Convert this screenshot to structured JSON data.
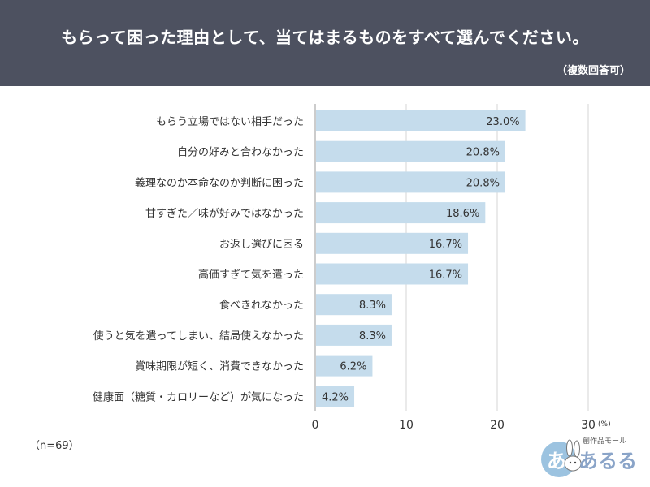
{
  "header": {
    "title": "もらって困った理由として、当てはまるものをすべて選んでください。",
    "subtitle": "（複数回答可）",
    "background_color": "#4d5160"
  },
  "footer": {
    "sample_size": "（n=69）",
    "brand_small": "創作品モール",
    "brand_main": "あるる"
  },
  "chart_data": {
    "type": "bar",
    "orientation": "horizontal",
    "categories": [
      "もらう立場ではない相手だった",
      "自分の好みと合わなかった",
      "義理なのか本命なのか判断に困った",
      "甘すぎた／味が好みではなかった",
      "お返し選びに困る",
      "高価すぎて気を遣った",
      "食べきれなかった",
      "使うと気を遣ってしまい、結局使えなかった",
      "賞味期限が短く、消費できなかった",
      "健康面（糖質・カロリーなど）が気になった"
    ],
    "values": [
      23.0,
      20.8,
      20.8,
      18.6,
      16.7,
      16.7,
      8.3,
      8.3,
      6.2,
      4.2
    ],
    "value_labels": [
      "23.0%",
      "20.8%",
      "20.8%",
      "18.6%",
      "16.7%",
      "16.7%",
      "8.3%",
      "8.3%",
      "6.2%",
      "4.2%"
    ],
    "xlim": [
      0,
      30
    ],
    "x_ticks": [
      "0",
      "10",
      "20",
      "30"
    ],
    "unit_label": "(%)",
    "grid": true,
    "bar_color": "#c5dcec",
    "grid_color": "#d5d5d5"
  }
}
